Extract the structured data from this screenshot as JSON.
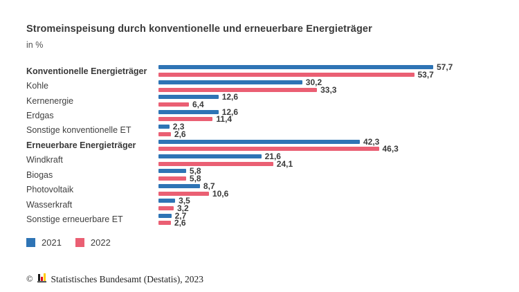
{
  "title": "Stromeinspeisung durch konventionelle und erneuerbare Energieträger",
  "subtitle": "in %",
  "colors": {
    "bar_2021_blue": "#2e74b5",
    "bar_2022_pink": "#ea5f73",
    "text_dark": "#3a3a3a",
    "logo_black": "#1a1a1a",
    "logo_red": "#e10019",
    "logo_gold": "#ffcc00"
  },
  "legend": [
    {
      "label": "2021",
      "color": "#2e74b5"
    },
    {
      "label": "2022",
      "color": "#ea5f73"
    }
  ],
  "footer": {
    "copyright_symbol": "©",
    "source_text": "Statistisches Bundesamt (Destatis), 2023"
  },
  "chart_data": {
    "type": "bar",
    "orientation": "horizontal",
    "title": "Stromeinspeisung durch konventionelle und erneuerbare Energieträger",
    "unit_label": "in %",
    "xlim": [
      0,
      60
    ],
    "grid": false,
    "legend_position": "bottom-left",
    "series": [
      {
        "name": "2021",
        "color": "#2e74b5"
      },
      {
        "name": "2022",
        "color": "#ea5f73"
      }
    ],
    "categories": [
      {
        "label": "Konventionelle Energieträger",
        "bold": true,
        "v2021": 57.7,
        "v2022": 53.7,
        "d2021": "57,7",
        "d2022": "53,7"
      },
      {
        "label": "Kohle",
        "bold": false,
        "v2021": 30.2,
        "v2022": 33.3,
        "d2021": "30,2",
        "d2022": "33,3"
      },
      {
        "label": "Kernenergie",
        "bold": false,
        "v2021": 12.6,
        "v2022": 6.4,
        "d2021": "12,6",
        "d2022": "6,4"
      },
      {
        "label": "Erdgas",
        "bold": false,
        "v2021": 12.6,
        "v2022": 11.4,
        "d2021": "12,6",
        "d2022": "11,4"
      },
      {
        "label": "Sonstige konventionelle ET",
        "bold": false,
        "v2021": 2.3,
        "v2022": 2.6,
        "d2021": "2,3",
        "d2022": "2,6"
      },
      {
        "label": "Erneuerbare Energieträger",
        "bold": true,
        "v2021": 42.3,
        "v2022": 46.3,
        "d2021": "42,3",
        "d2022": "46,3"
      },
      {
        "label": "Windkraft",
        "bold": false,
        "v2021": 21.6,
        "v2022": 24.1,
        "d2021": "21,6",
        "d2022": "24,1"
      },
      {
        "label": "Biogas",
        "bold": false,
        "v2021": 5.8,
        "v2022": 5.8,
        "d2021": "5,8",
        "d2022": "5,8"
      },
      {
        "label": "Photovoltaik",
        "bold": false,
        "v2021": 8.7,
        "v2022": 10.6,
        "d2021": "8,7",
        "d2022": "10,6"
      },
      {
        "label": "Wasserkraft",
        "bold": false,
        "v2021": 3.5,
        "v2022": 3.2,
        "d2021": "3,5",
        "d2022": "3,2"
      },
      {
        "label": "Sonstige erneuerbare ET",
        "bold": false,
        "v2021": 2.7,
        "v2022": 2.6,
        "d2021": "2,7",
        "d2022": "2,6"
      }
    ]
  }
}
